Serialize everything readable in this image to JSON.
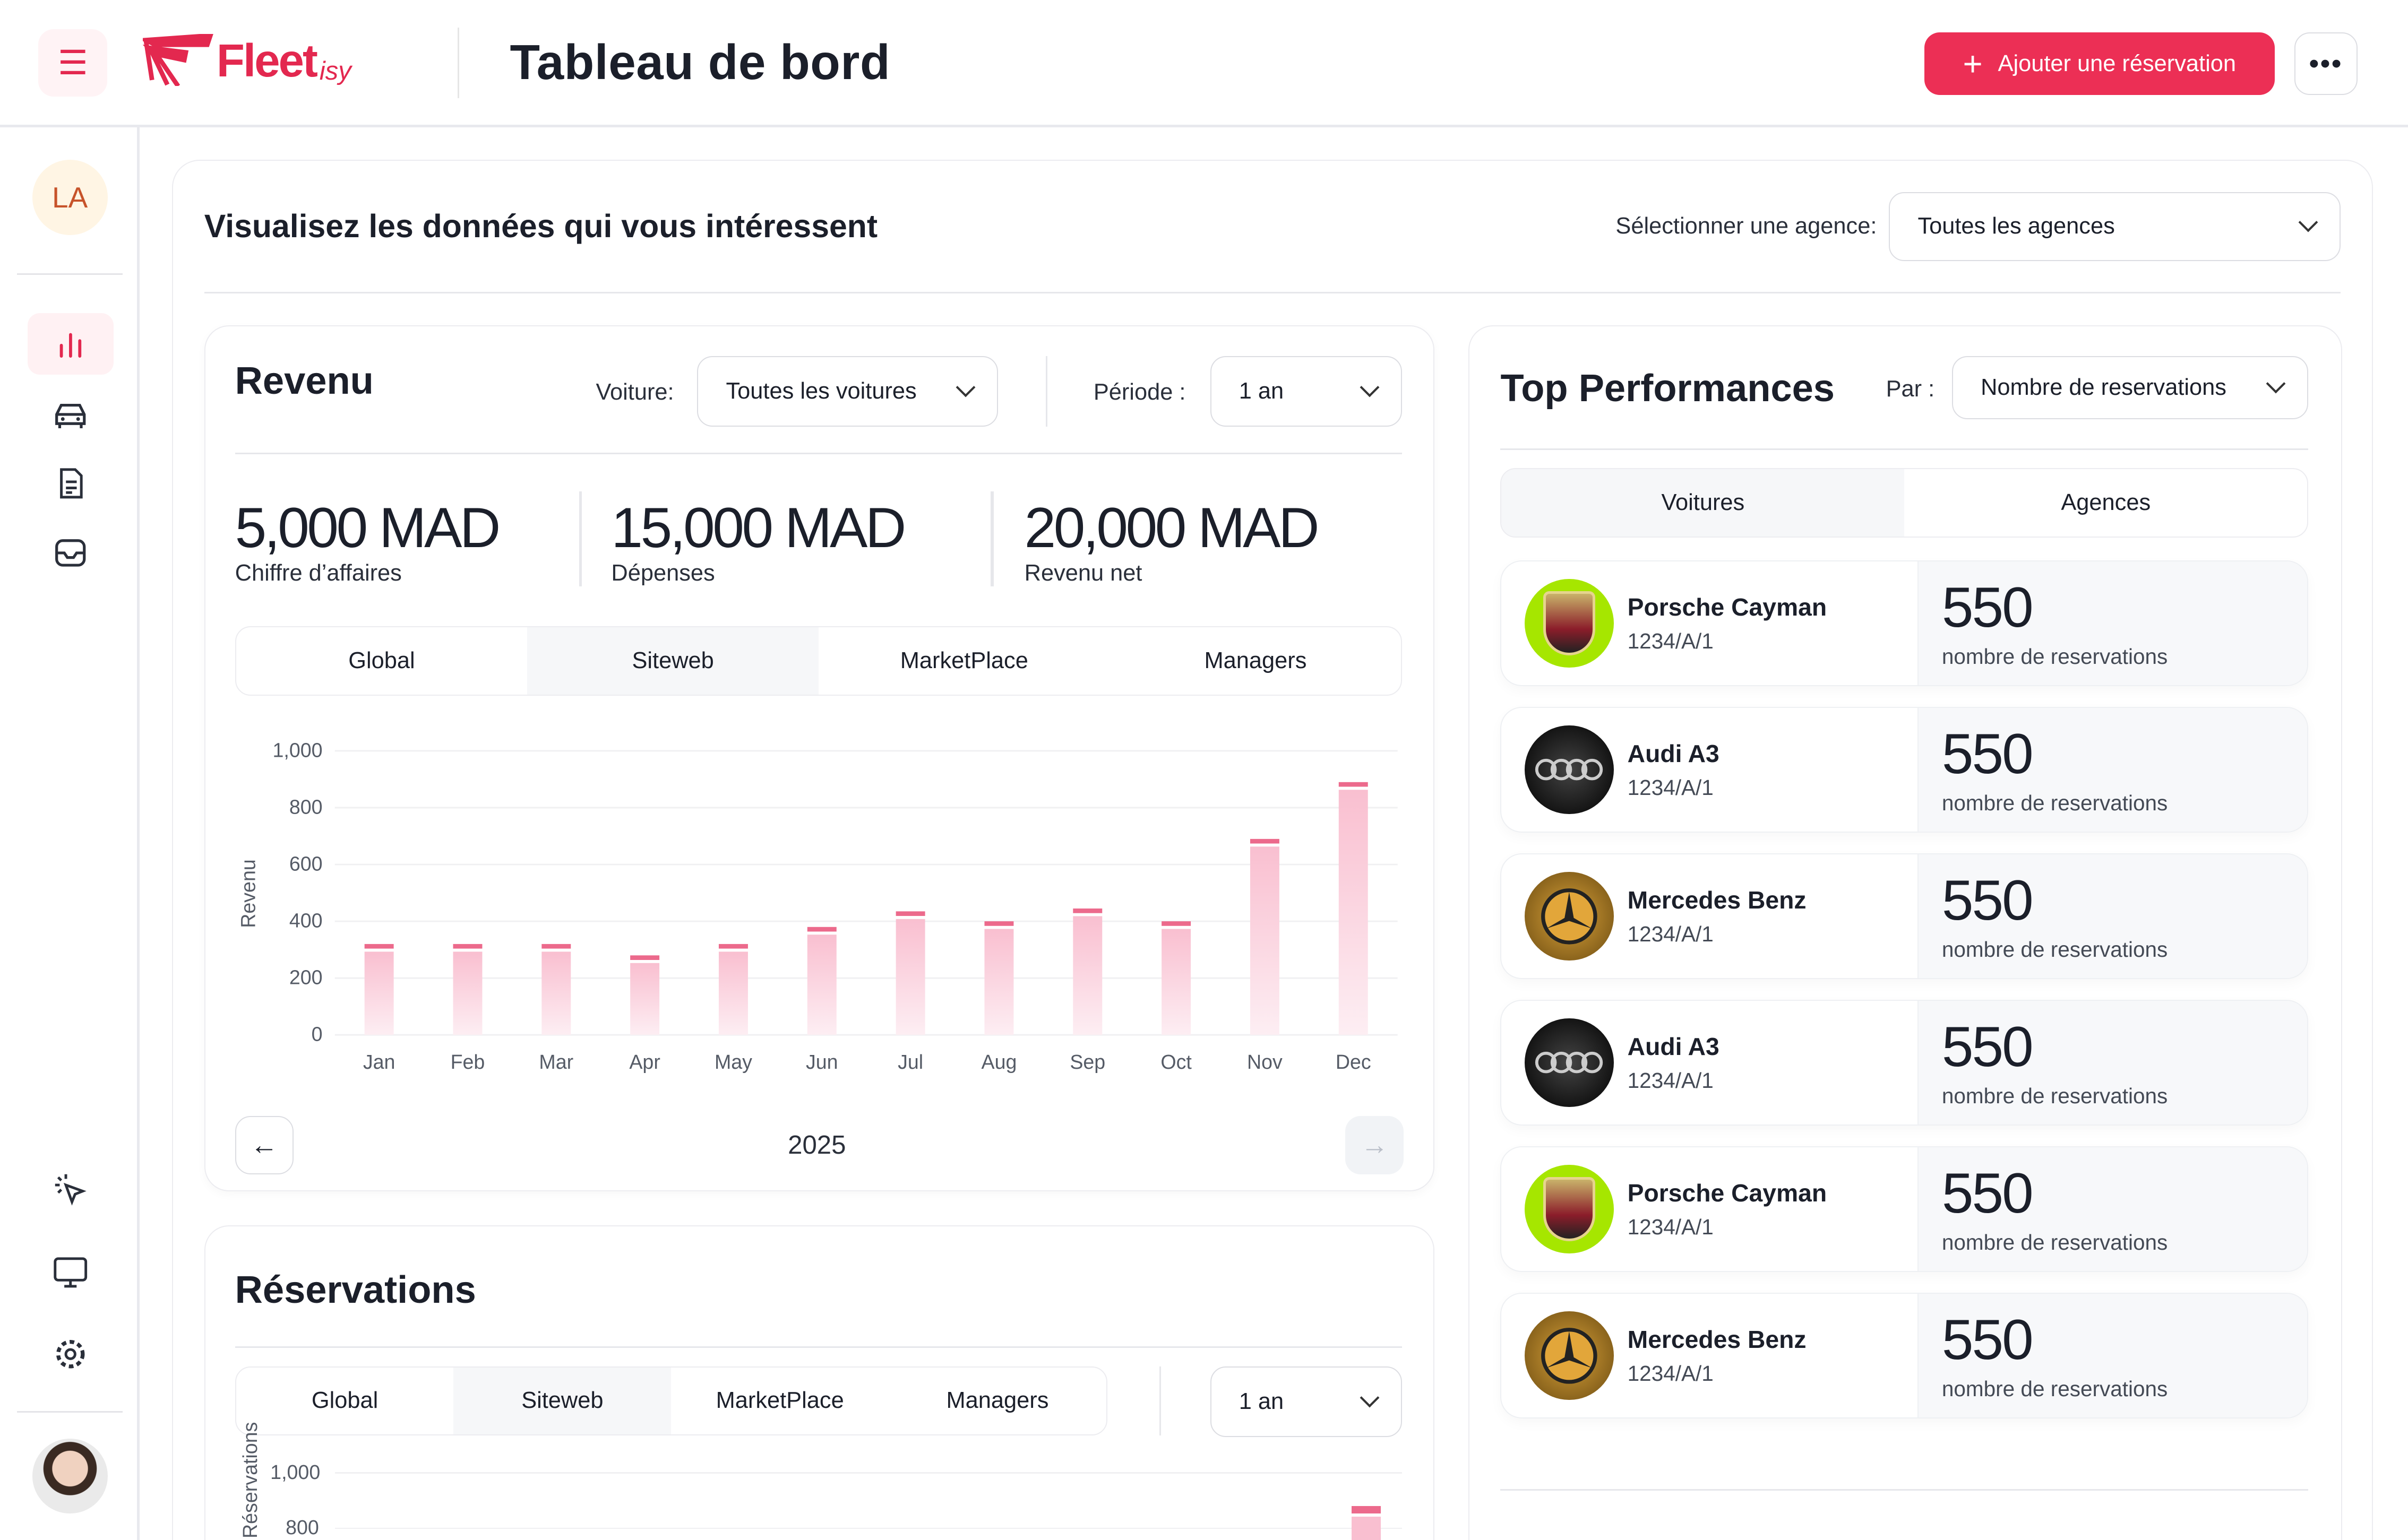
{
  "header": {
    "brand": "Fleetisy",
    "brand_main": "Fleet",
    "brand_sub": "isy",
    "title": "Tableau de bord",
    "add_button": "Ajouter une réservation",
    "more": "•••"
  },
  "sidebar": {
    "user_initials": "LA",
    "items": [
      "chart-icon",
      "car-icon",
      "document-icon",
      "inbox-icon"
    ],
    "bottom": [
      "pointer-click-icon",
      "monitor-icon",
      "gear-icon"
    ]
  },
  "main": {
    "subtitle": "Visualisez les données qui vous intéressent",
    "agency_label": "Sélectionner une agence:",
    "agency_value": "Toutes les agences"
  },
  "revenue": {
    "title": "Revenu",
    "car_label": "Voiture:",
    "car_value": "Toutes les voitures",
    "period_label": "Période :",
    "period_value": "1 an",
    "kpis": [
      {
        "value": "5,000 MAD",
        "label": "Chiffre d’affaires"
      },
      {
        "value": "15,000 MAD",
        "label": "Dépenses"
      },
      {
        "value": "20,000 MAD",
        "label": "Revenu net"
      }
    ],
    "tabs": [
      "Global",
      "Siteweb",
      "MarketPlace",
      "Managers"
    ],
    "active_tab": 1,
    "year": "2025"
  },
  "reservations": {
    "title": "Réservations",
    "tabs": [
      "Global",
      "Siteweb",
      "MarketPlace",
      "Managers"
    ],
    "active_tab": 1,
    "period_value": "1 an",
    "ylabel": "Réservations",
    "ticks": [
      "1,000",
      "800"
    ]
  },
  "top": {
    "title": "Top Performances",
    "by_label": "Par :",
    "by_value": "Nombre de reservations",
    "tabs": [
      "Voitures",
      "Agences"
    ],
    "items": [
      {
        "name": "Porsche Cayman",
        "code": "1234/A/1",
        "value": "550",
        "desc": "nombre de reservations",
        "brand": "porsche"
      },
      {
        "name": "Audi A3",
        "code": "1234/A/1",
        "value": "550",
        "desc": "nombre de reservations",
        "brand": "audi"
      },
      {
        "name": "Mercedes Benz",
        "code": "1234/A/1",
        "value": "550",
        "desc": "nombre de reservations",
        "brand": "mercedes"
      },
      {
        "name": "Audi A3",
        "code": "1234/A/1",
        "value": "550",
        "desc": "nombre de reservations",
        "brand": "audi"
      },
      {
        "name": "Porsche Cayman",
        "code": "1234/A/1",
        "value": "550",
        "desc": "nombre de reservations",
        "brand": "porsche"
      },
      {
        "name": "Mercedes Benz",
        "code": "1234/A/1",
        "value": "550",
        "desc": "nombre de reservations",
        "brand": "mercedes"
      }
    ]
  },
  "colors": {
    "accent": "#ec2f55",
    "bar": "#f9bfd0",
    "bar_cap": "#ec6a8c"
  },
  "chart_data": {
    "type": "bar",
    "title": "Revenu",
    "xlabel": "",
    "ylabel": "Revenu",
    "ylim": [
      0,
      1000
    ],
    "yticks": [
      "0",
      "200",
      "400",
      "600",
      "800",
      "1,000"
    ],
    "categories": [
      "Jan",
      "Feb",
      "Mar",
      "Apr",
      "May",
      "Jun",
      "Jul",
      "Aug",
      "Sep",
      "Oct",
      "Nov",
      "Dec"
    ],
    "values": [
      320,
      320,
      320,
      280,
      320,
      380,
      435,
      400,
      445,
      400,
      690,
      890
    ]
  }
}
